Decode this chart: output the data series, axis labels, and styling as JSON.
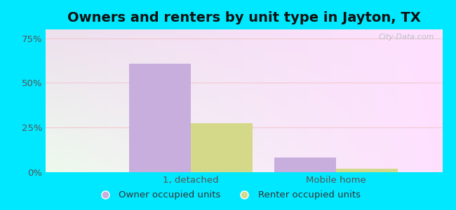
{
  "title": "Owners and renters by unit type in Jayton, TX",
  "categories": [
    "1, detached",
    "Mobile home"
  ],
  "owner_values": [
    60.6,
    8.1
  ],
  "renter_values": [
    27.3,
    2.0
  ],
  "owner_color": "#c8aedd",
  "renter_color": "#d4d98a",
  "yticks": [
    0,
    25,
    50,
    75
  ],
  "ytick_labels": [
    "0%",
    "25%",
    "50%",
    "75%"
  ],
  "ylim": [
    0,
    80
  ],
  "background_outer": "#00e8ff",
  "bar_width": 0.32,
  "legend_owner": "Owner occupied units",
  "legend_renter": "Renter occupied units",
  "watermark": "City-Data.com",
  "title_fontsize": 14,
  "tick_fontsize": 9.5,
  "x_positions": [
    0.25,
    1.0
  ]
}
